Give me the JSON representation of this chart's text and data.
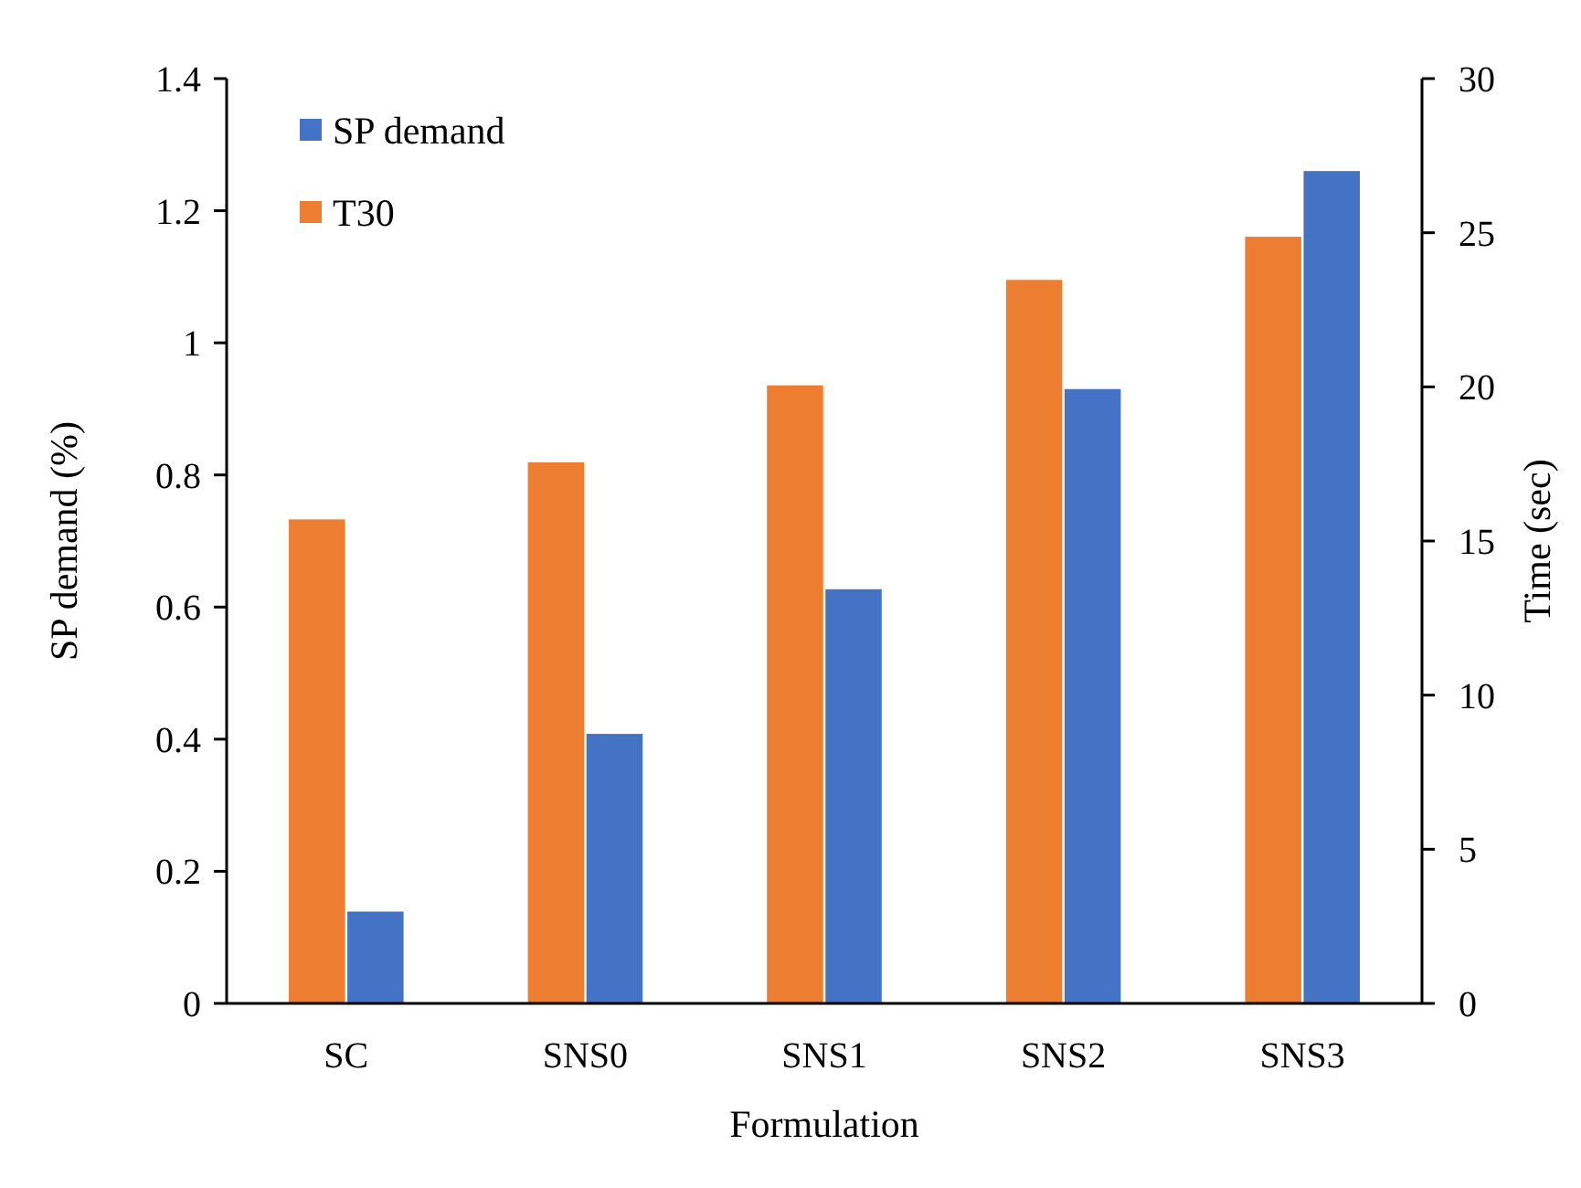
{
  "chart_data": {
    "type": "bar",
    "xlabel": "Formulation",
    "ylabel": "SP demand (%)",
    "y2label": "Time (sec)",
    "categories": [
      "SC",
      "SNS0",
      "SNS1",
      "SNS2",
      "SNS3"
    ],
    "series": [
      {
        "name": "T30",
        "color": "#ed7d31",
        "axis": "y2",
        "values": [
          15.7,
          17.55,
          20.05,
          23.47,
          24.87
        ]
      },
      {
        "name": "SP demand",
        "color": "#4472c4",
        "values": [
          0.139,
          0.408,
          0.627,
          0.93,
          1.26
        ]
      }
    ],
    "ylim": [
      0,
      1.4
    ],
    "yticks": [
      0,
      0.2,
      0.4,
      0.6,
      0.8,
      1,
      1.2,
      1.4
    ],
    "y2lim": [
      0,
      30
    ],
    "y2ticks": [
      0,
      5,
      10,
      15,
      20,
      25,
      30
    ],
    "legend": "top left",
    "grid": false
  }
}
